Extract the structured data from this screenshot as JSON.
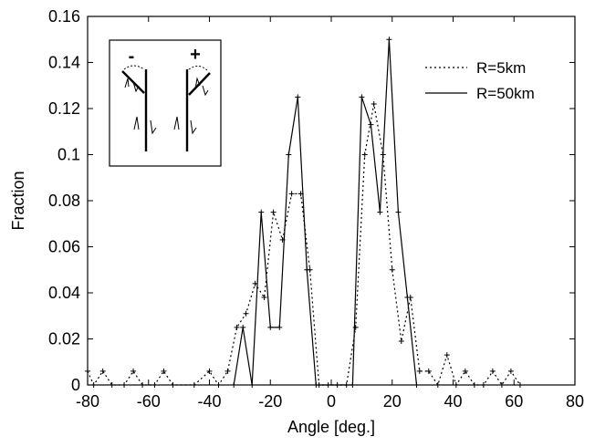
{
  "chart_data": {
    "type": "line",
    "title": "",
    "xlabel": "Angle [deg.]",
    "ylabel": "Fraction",
    "xlim": [
      -80,
      80
    ],
    "ylim": [
      0,
      0.16
    ],
    "xticks": [
      -80,
      -60,
      -40,
      -20,
      0,
      20,
      40,
      60,
      80
    ],
    "yticks": [
      0,
      0.02,
      0.04,
      0.06,
      0.08,
      0.1,
      0.12,
      0.14,
      0.16
    ],
    "xtick_labels": [
      "-80",
      "-60",
      "-40",
      "-20",
      "0",
      "20",
      "40",
      "60",
      "80"
    ],
    "ytick_labels": [
      "0",
      "0.02",
      "0.04",
      "0.06",
      "0.08",
      "0.1",
      "0.12",
      "0.14",
      "0.16"
    ],
    "grid": false,
    "legend_position": "top-right",
    "series": [
      {
        "name": "R=5km",
        "style": "dotted",
        "x": [
          -80,
          -78,
          -75,
          -72,
          -68,
          -65,
          -62,
          -58,
          -55,
          -52,
          -45,
          -40,
          -37,
          -34,
          -31,
          -28,
          -25,
          -22,
          -19,
          -16,
          -13,
          -10,
          -7,
          -4,
          -1,
          2,
          5,
          8,
          11,
          14,
          17,
          20,
          23,
          26,
          29,
          32,
          35,
          38,
          41,
          44,
          47,
          50,
          53,
          56,
          59,
          62
        ],
        "y": [
          0.006,
          0,
          0.006,
          0,
          0,
          0.006,
          0,
          0,
          0.006,
          0,
          0,
          0.006,
          0,
          0.006,
          0.025,
          0.031,
          0.044,
          0.038,
          0.075,
          0.063,
          0.083,
          0.083,
          0.05,
          0,
          0,
          0,
          0,
          0.025,
          0.1,
          0.122,
          0.1,
          0.05,
          0.019,
          0.038,
          0.006,
          0.006,
          0,
          0.013,
          0,
          0.006,
          0,
          0,
          0.006,
          0,
          0.006,
          0
        ]
      },
      {
        "name": "R=50km",
        "style": "solid",
        "x": [
          -32,
          -29,
          -26,
          -23,
          -20,
          -17,
          -14,
          -11,
          -8,
          -5,
          7,
          10,
          13,
          16,
          19,
          22,
          25,
          28
        ],
        "y": [
          0,
          0.025,
          0,
          0.075,
          0.025,
          0.025,
          0.1,
          0.125,
          0.05,
          0,
          0,
          0.125,
          0.113,
          0.075,
          0.15,
          0.075,
          0.038,
          0
        ]
      }
    ],
    "inset": {
      "left_sign": "-",
      "right_sign": "+"
    }
  }
}
